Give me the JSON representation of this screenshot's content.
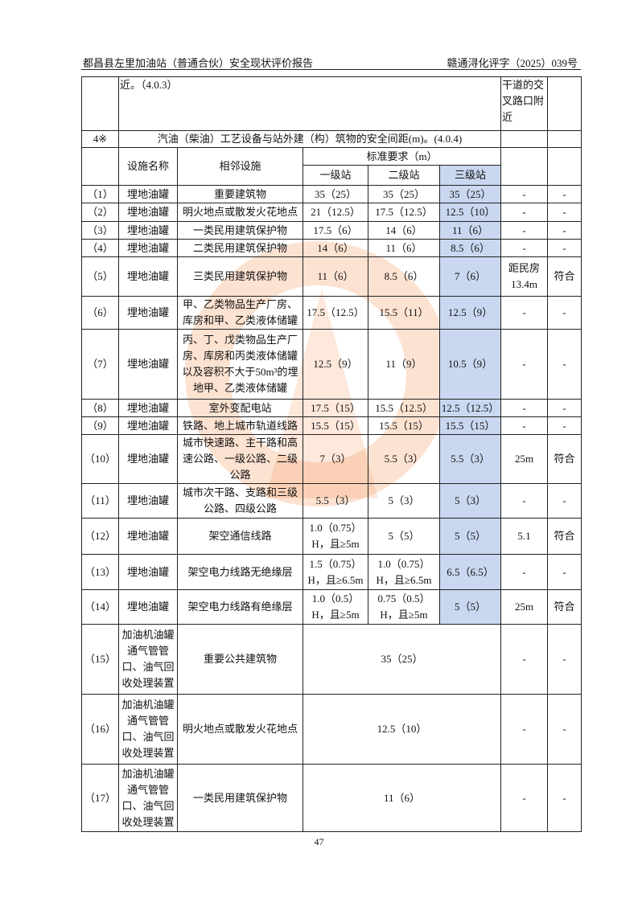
{
  "header": {
    "title": "都昌县左里加油站（普通合伙）安全现状评价报告",
    "doc_no": "赣通浔化评字（2025）039号"
  },
  "top_row": {
    "text": "近。（4.0.3）",
    "result": "干道的交叉路口附近"
  },
  "section": {
    "no": "4※",
    "title": "汽油（柴油）工艺设备与站外建（构）筑物的安全间距(m)。(4.0.4)"
  },
  "columns": {
    "facility": "设施名称",
    "adjacent": "相邻设施",
    "standard": "标准要求（m）",
    "l1": "一级站",
    "l2": "二级站",
    "l3": "三级站"
  },
  "rows": [
    {
      "no": "（1）",
      "facility": "埋地油罐",
      "adjacent": "重要建筑物",
      "l1": "35（25）",
      "l2": "35（25）",
      "l3": "35（25）",
      "actual": "-",
      "result": "-"
    },
    {
      "no": "（2）",
      "facility": "埋地油罐",
      "adjacent": "明火地点或散发火花地点",
      "l1": "21（12.5）",
      "l2": "17.5（12.5）",
      "l3": "12.5（10）",
      "actual": "-",
      "result": "-"
    },
    {
      "no": "（3）",
      "facility": "埋地油罐",
      "adjacent": "一类民用建筑保护物",
      "l1": "17.5（6）",
      "l2": "14（6）",
      "l3": "11（6）",
      "actual": "-",
      "result": "-"
    },
    {
      "no": "（4）",
      "facility": "埋地油罐",
      "adjacent": "二类民用建筑保护物",
      "l1": "14（6）",
      "l2": "11（6）",
      "l3": "8.5（6）",
      "actual": "-",
      "result": "-"
    },
    {
      "no": "（5）",
      "facility": "埋地油罐",
      "adjacent": "三类民用建筑保护物",
      "l1": "11（6）",
      "l2": "8.5（6）",
      "l3": "7（6）",
      "actual": "距民房13.4m",
      "result": "符合"
    },
    {
      "no": "（6）",
      "facility": "埋地油罐",
      "adjacent": "甲、乙类物品生产厂房、库房和甲、乙类液体储罐",
      "l1": "17.5（12.5）",
      "l2": "15.5（11）",
      "l3": "12.5（9）",
      "actual": "-",
      "result": "-"
    },
    {
      "no": "（7）",
      "facility": "埋地油罐",
      "adjacent": "丙、丁、戊类物品生产厂房、库房和丙类液体储罐以及容积不大于50m³的埋地甲、乙类液体储罐",
      "l1": "12.5（9）",
      "l2": "11（9）",
      "l3": "10.5（9）",
      "actual": "-",
      "result": "-"
    },
    {
      "no": "（8）",
      "facility": "埋地油罐",
      "adjacent": "室外变配电站",
      "l1": "17.5（15）",
      "l2": "15.5（12.5）",
      "l3": "12.5（12.5）",
      "actual": "-",
      "result": "-"
    },
    {
      "no": "（9）",
      "facility": "埋地油罐",
      "adjacent": "铁路、地上城市轨道线路",
      "l1": "15.5（15）",
      "l2": "15.5（15）",
      "l3": "15.5（15）",
      "actual": "-",
      "result": "-"
    },
    {
      "no": "（10）",
      "facility": "埋地油罐",
      "adjacent": "城市快速路、主干路和高速公路、一级公路、二级公路",
      "l1": "7（3）",
      "l2": "5.5（3）",
      "l3": "5.5（3）",
      "actual": "25m",
      "result": "符合"
    },
    {
      "no": "（11）",
      "facility": "埋地油罐",
      "adjacent": "城市次干路、支路和三级公路、四级公路",
      "l1": "5.5（3）",
      "l2": "5（3）",
      "l3": "5（3）",
      "actual": "-",
      "result": "-"
    },
    {
      "no": "（12）",
      "facility": "埋地油罐",
      "adjacent": "架空通信线路",
      "l1": "1.0（0.75）H，且≥5m",
      "l2": "5（5）",
      "l3": "5（5）",
      "actual": "5.1",
      "result": "符合"
    },
    {
      "no": "（13）",
      "facility": "埋地油罐",
      "adjacent": "架空电力线路无绝缘层",
      "l1": "1.5（0.75）H，且≥6.5m",
      "l2": "1.0（0.75）H，且≥6.5m",
      "l3": "6.5（6.5）",
      "actual": "-",
      "result": "-"
    },
    {
      "no": "（14）",
      "facility": "埋地油罐",
      "adjacent": "架空电力线路有绝缘层",
      "l1": "1.0（0.5）H，且≥5m",
      "l2": "0.75（0.5）H，且≥5m",
      "l3": "5（5）",
      "actual": "25m",
      "result": "符合"
    }
  ],
  "merged_rows": [
    {
      "no": "（15）",
      "facility": "加油机油罐通气管管口、油气回收处理装置",
      "adjacent": "重要公共建筑物",
      "value": "35（25）",
      "actual": "-",
      "result": "-"
    },
    {
      "no": "（16）",
      "facility": "加油机油罐通气管管口、油气回收处理装置",
      "adjacent": "明火地点或散发火花地点",
      "value": "12.5（10）",
      "actual": "-",
      "result": "-"
    },
    {
      "no": "（17）",
      "facility": "加油机油罐通气管管口、油气回收处理装置",
      "adjacent": "一类民用建筑保护物",
      "value": "11（6）",
      "actual": "-",
      "result": "-"
    }
  ],
  "page_number": "47",
  "colors": {
    "highlight": "#c9d8f0",
    "watermark": "#f5965a"
  }
}
